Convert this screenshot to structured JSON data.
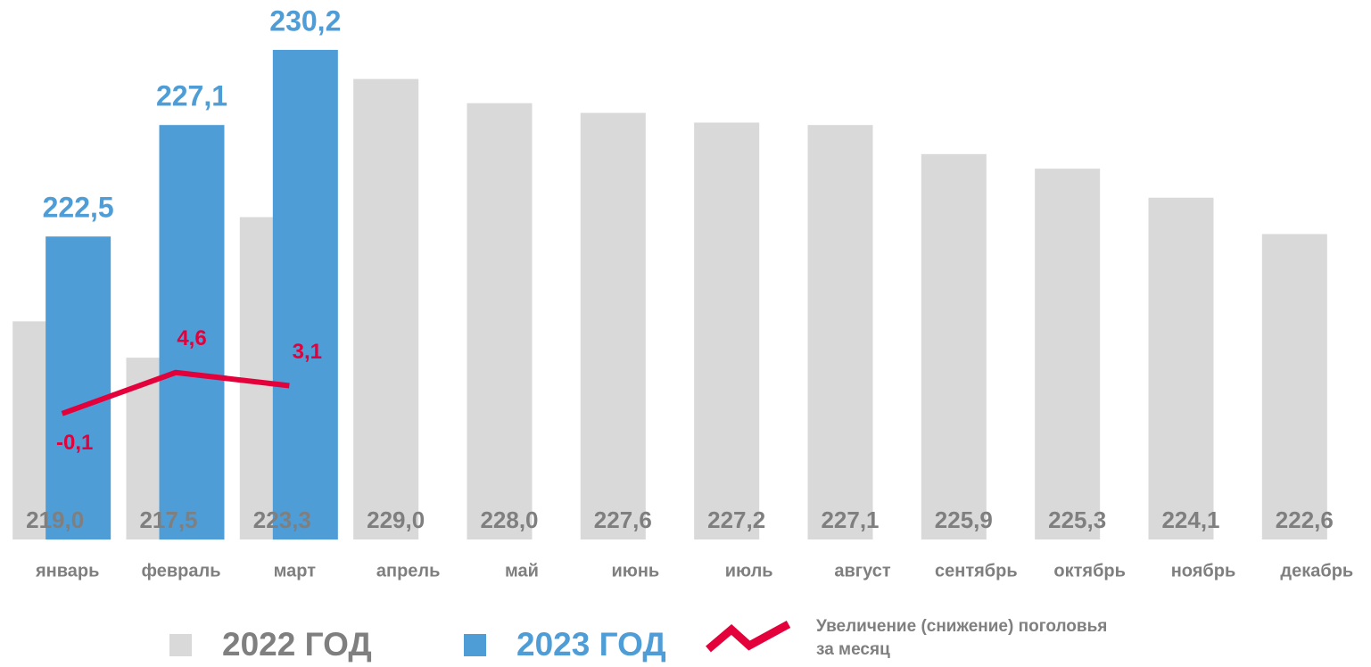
{
  "chart_data": {
    "type": "bar",
    "categories": [
      "январь",
      "февраль",
      "март",
      "апрель",
      "май",
      "июнь",
      "июль",
      "август",
      "сентябрь",
      "октябрь",
      "ноябрь",
      "декабрь"
    ],
    "series": [
      {
        "name": "2022 ГОД",
        "color": "#d9d9d9",
        "type": "bar",
        "values": [
          219.0,
          217.5,
          223.3,
          229.0,
          228.0,
          227.6,
          227.2,
          227.1,
          225.9,
          225.3,
          224.1,
          222.6
        ],
        "value_labels": [
          "219,0",
          "217,5",
          "223,3",
          "229,0",
          "228,0",
          "227,6",
          "227,2",
          "227,1",
          "225,9",
          "225,3",
          "224,1",
          "222,6"
        ]
      },
      {
        "name": "2023 ГОД",
        "color": "#4f9dd6",
        "type": "bar",
        "values": [
          222.5,
          227.1,
          230.2,
          null,
          null,
          null,
          null,
          null,
          null,
          null,
          null,
          null
        ],
        "value_labels": [
          "222,5",
          "227,1",
          "230,2",
          null,
          null,
          null,
          null,
          null,
          null,
          null,
          null,
          null
        ]
      },
      {
        "name": "Увеличение (снижение) поголовья за месяц",
        "color": "#e4003a",
        "type": "line",
        "axis": "y2",
        "values": [
          -0.1,
          4.6,
          3.1,
          null,
          null,
          null,
          null,
          null,
          null,
          null,
          null,
          null
        ],
        "value_labels": [
          "-0,1",
          "4,6",
          "3,1",
          null,
          null,
          null,
          null,
          null,
          null,
          null,
          null,
          null
        ]
      }
    ],
    "ylim": [
      210,
      232
    ],
    "y2lim": [
      -14.5,
      46.5
    ],
    "legend": "bottom"
  }
}
